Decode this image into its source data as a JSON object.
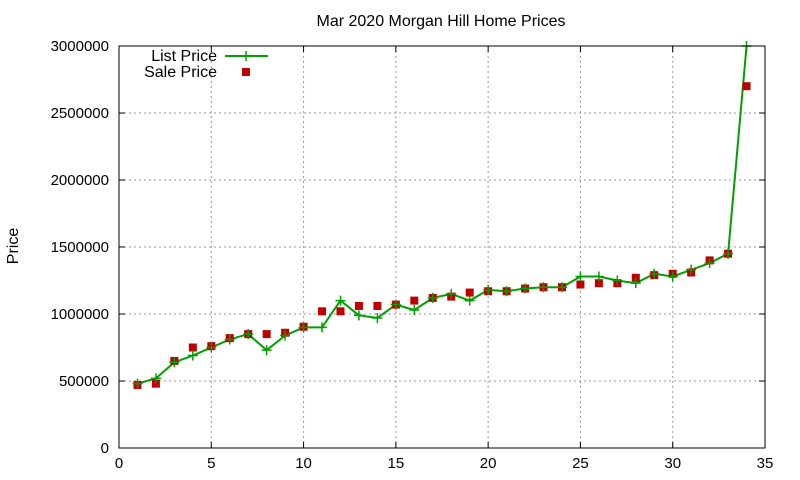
{
  "chart_data": {
    "type": "line",
    "title": "Mar 2020 Morgan Hill Home Prices",
    "xlabel": "",
    "ylabel": "Price",
    "xlim": [
      0,
      35
    ],
    "ylim": [
      0,
      3000000
    ],
    "xticks": [
      0,
      5,
      10,
      15,
      20,
      25,
      30,
      35
    ],
    "yticks": [
      0,
      500000,
      1000000,
      1500000,
      2000000,
      2500000,
      3000000
    ],
    "grid": true,
    "legend_position": "top-left",
    "x": [
      1,
      2,
      3,
      4,
      5,
      6,
      7,
      8,
      9,
      10,
      11,
      12,
      13,
      14,
      15,
      16,
      17,
      18,
      19,
      20,
      21,
      22,
      23,
      24,
      25,
      26,
      27,
      28,
      29,
      30,
      31,
      32,
      33,
      34
    ],
    "series": [
      {
        "name": "List Price",
        "kind": "line",
        "marker": "plus",
        "color": "#00a000",
        "values": [
          480000,
          520000,
          640000,
          690000,
          750000,
          810000,
          850000,
          730000,
          840000,
          900000,
          900000,
          1100000,
          990000,
          970000,
          1070000,
          1030000,
          1120000,
          1150000,
          1100000,
          1180000,
          1170000,
          1190000,
          1200000,
          1200000,
          1280000,
          1280000,
          1250000,
          1230000,
          1300000,
          1280000,
          1330000,
          1380000,
          1450000,
          3000000
        ]
      },
      {
        "name": "Sale Price",
        "kind": "points",
        "marker": "square",
        "color": "#c00000",
        "values": [
          470000,
          480000,
          650000,
          750000,
          760000,
          820000,
          850000,
          850000,
          860000,
          905000,
          1020000,
          1020000,
          1060000,
          1060000,
          1070000,
          1100000,
          1120000,
          1130000,
          1160000,
          1170000,
          1170000,
          1190000,
          1200000,
          1200000,
          1220000,
          1230000,
          1230000,
          1270000,
          1290000,
          1300000,
          1310000,
          1400000,
          1450000,
          2700000
        ]
      }
    ]
  }
}
